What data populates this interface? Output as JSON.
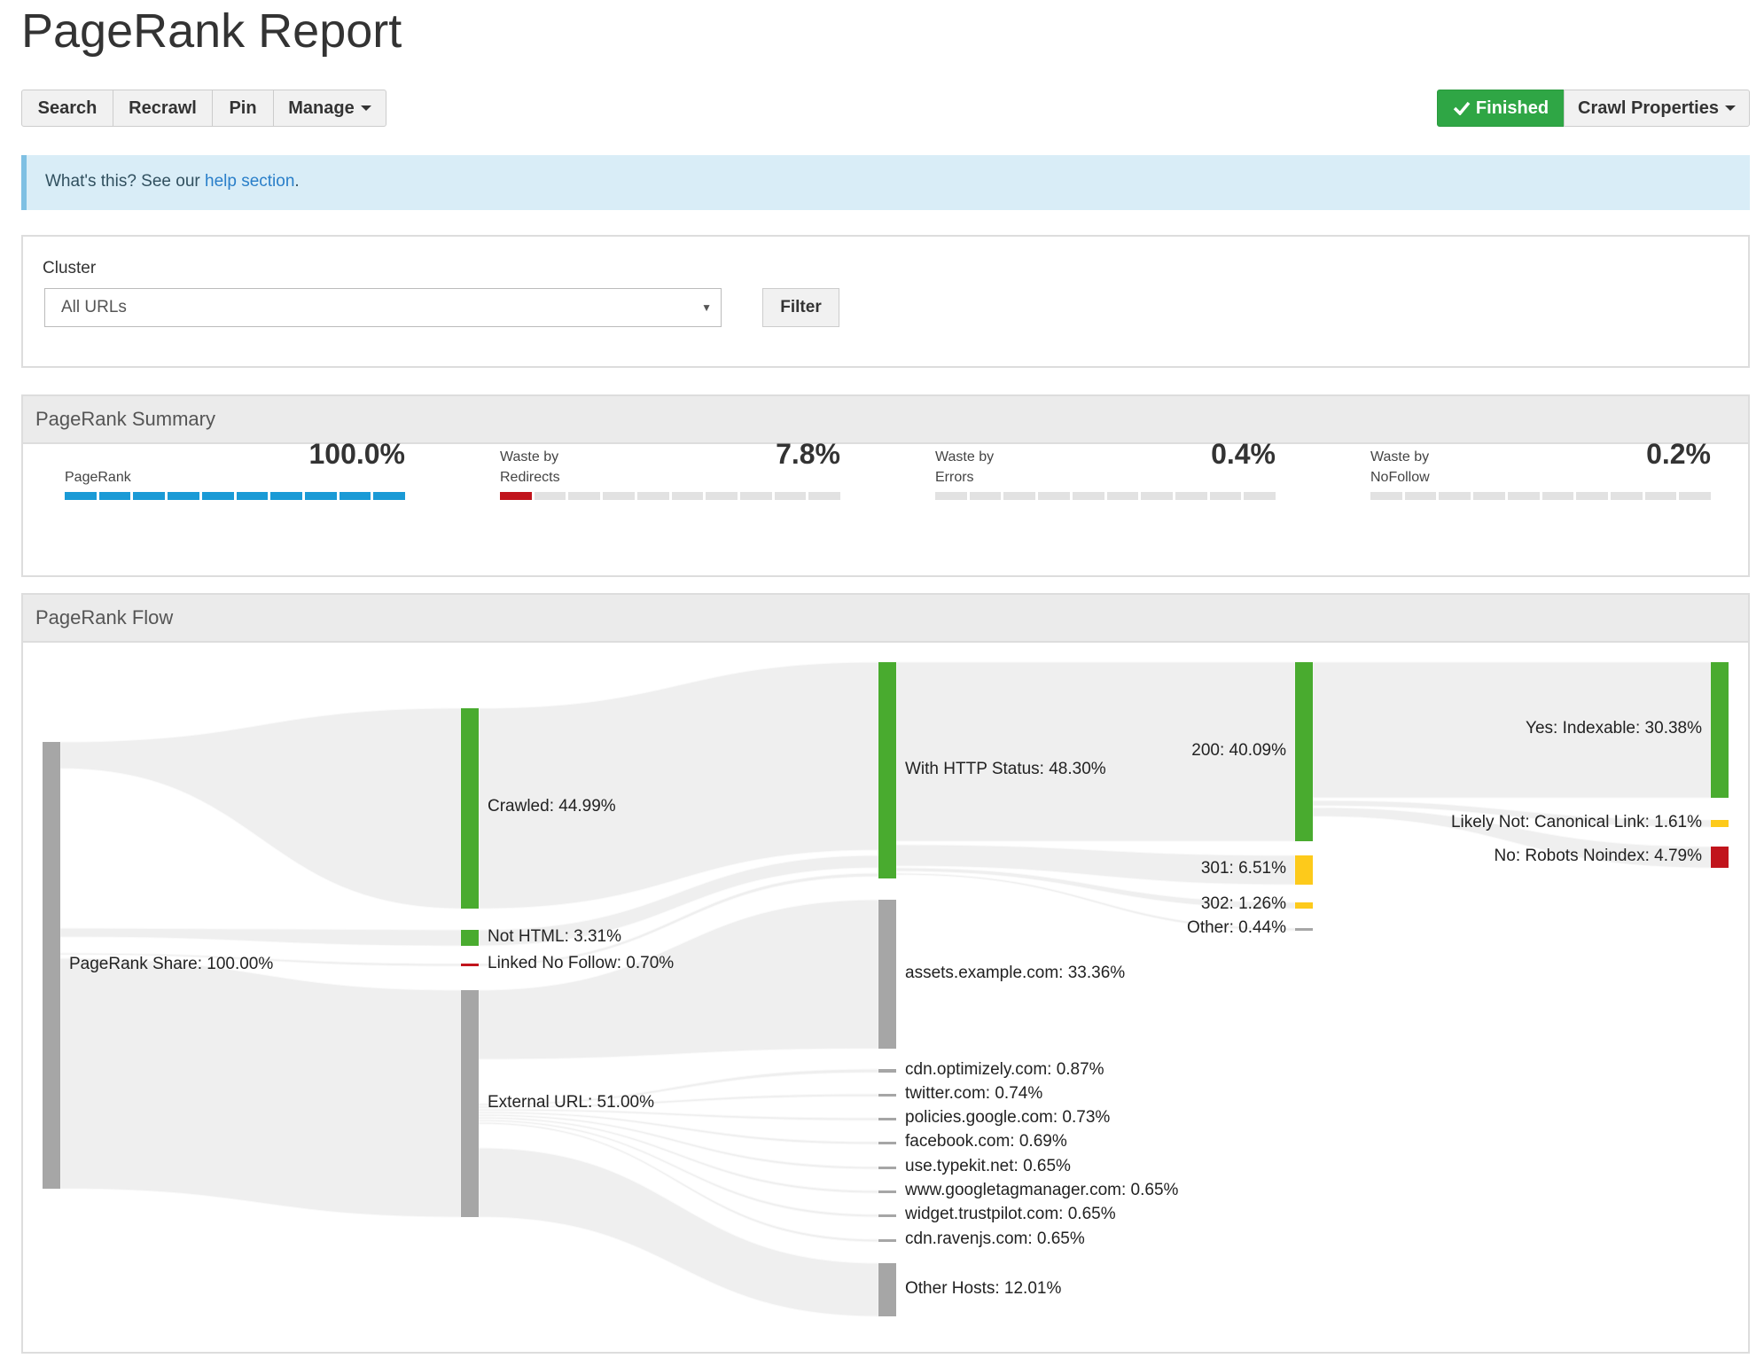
{
  "page": {
    "title": "PageRank Report"
  },
  "toolbar": {
    "search": "Search",
    "recrawl": "Recrawl",
    "pin": "Pin",
    "manage": "Manage",
    "status": "Finished",
    "crawl_properties": "Crawl Properties"
  },
  "info": {
    "text": "What's this? See our ",
    "link": "help section",
    "suffix": "."
  },
  "filter": {
    "label": "Cluster",
    "selected": "All URLs",
    "button": "Filter"
  },
  "summary": {
    "heading": "PageRank Summary",
    "metrics": [
      {
        "label": "PageRank",
        "value": "100.0%",
        "fraction": 1.0,
        "color": "#1a9ad6"
      },
      {
        "label": "Waste by\nRedirects",
        "value": "7.8%",
        "fraction": 0.078,
        "color": "#c1141c"
      },
      {
        "label": "Waste by\nErrors",
        "value": "0.4%",
        "fraction": 0.004,
        "color": "#c1141c"
      },
      {
        "label": "Waste by\nNoFollow",
        "value": "0.2%",
        "fraction": 0.002,
        "color": "#c1141c"
      }
    ]
  },
  "flow": {
    "heading": "PageRank Flow",
    "colors": {
      "green": "#49ab2f",
      "gray": "#a6a6a6",
      "red": "#c1141c",
      "yellow": "#fdca1b",
      "link": "#efefef"
    },
    "nodes": [
      {
        "id": "share",
        "label": "PageRank Share: 100.00%",
        "color": "gray",
        "col": 0
      },
      {
        "id": "crawled",
        "label": "Crawled: 44.99%",
        "color": "green",
        "col": 1
      },
      {
        "id": "nothtml",
        "label": "Not HTML: 3.31%",
        "color": "green",
        "col": 1
      },
      {
        "id": "nofollow",
        "label": "Linked No Follow: 0.70%",
        "color": "red",
        "col": 1
      },
      {
        "id": "external",
        "label": "External URL: 51.00%",
        "color": "gray",
        "col": 1
      },
      {
        "id": "http",
        "label": "With HTTP Status: 48.30%",
        "color": "green",
        "col": 2
      },
      {
        "id": "assets",
        "label": "assets.example.com: 33.36%",
        "color": "gray",
        "col": 2
      },
      {
        "id": "optimizely",
        "label": "cdn.optimizely.com: 0.87%",
        "color": "gray",
        "col": 2
      },
      {
        "id": "twitter",
        "label": "twitter.com: 0.74%",
        "color": "gray",
        "col": 2
      },
      {
        "id": "policies",
        "label": "policies.google.com: 0.73%",
        "color": "gray",
        "col": 2
      },
      {
        "id": "facebook",
        "label": "facebook.com: 0.69%",
        "color": "gray",
        "col": 2
      },
      {
        "id": "typekit",
        "label": "use.typekit.net: 0.65%",
        "color": "gray",
        "col": 2
      },
      {
        "id": "gtm",
        "label": "www.googletagmanager.com: 0.65%",
        "color": "gray",
        "col": 2
      },
      {
        "id": "trustpilot",
        "label": "widget.trustpilot.com: 0.65%",
        "color": "gray",
        "col": 2
      },
      {
        "id": "ravenjs",
        "label": "cdn.ravenjs.com: 0.65%",
        "color": "gray",
        "col": 2
      },
      {
        "id": "otherhosts",
        "label": "Other Hosts: 12.01%",
        "color": "gray",
        "col": 2
      },
      {
        "id": "s200",
        "label": "200: 40.09%",
        "color": "green",
        "col": 3
      },
      {
        "id": "s301",
        "label": "301: 6.51%",
        "color": "yellow",
        "col": 3
      },
      {
        "id": "s302",
        "label": "302: 1.26%",
        "color": "yellow",
        "col": 3
      },
      {
        "id": "sother",
        "label": "Other: 0.44%",
        "color": "gray",
        "col": 3
      },
      {
        "id": "indexable",
        "label": "Yes: Indexable: 30.38%",
        "color": "green",
        "col": 4
      },
      {
        "id": "canonical",
        "label": "Likely Not: Canonical Link: 1.61%",
        "color": "yellow",
        "col": 4
      },
      {
        "id": "noindex",
        "label": "No: Robots Noindex: 4.79%",
        "color": "red",
        "col": 4
      }
    ],
    "links": [
      {
        "from": "share",
        "to": "crawled"
      },
      {
        "from": "share",
        "to": "nothtml"
      },
      {
        "from": "share",
        "to": "nofollow"
      },
      {
        "from": "share",
        "to": "external"
      },
      {
        "from": "crawled",
        "to": "http"
      },
      {
        "from": "nothtml",
        "to": "http"
      },
      {
        "from": "nofollow",
        "to": "http"
      },
      {
        "from": "external",
        "to": "assets"
      },
      {
        "from": "external",
        "to": "optimizely"
      },
      {
        "from": "external",
        "to": "twitter"
      },
      {
        "from": "external",
        "to": "policies"
      },
      {
        "from": "external",
        "to": "facebook"
      },
      {
        "from": "external",
        "to": "typekit"
      },
      {
        "from": "external",
        "to": "gtm"
      },
      {
        "from": "external",
        "to": "trustpilot"
      },
      {
        "from": "external",
        "to": "ravenjs"
      },
      {
        "from": "external",
        "to": "otherhosts"
      },
      {
        "from": "http",
        "to": "s200"
      },
      {
        "from": "http",
        "to": "s301"
      },
      {
        "from": "http",
        "to": "s302"
      },
      {
        "from": "http",
        "to": "sother"
      },
      {
        "from": "s200",
        "to": "indexable"
      },
      {
        "from": "s200",
        "to": "canonical"
      },
      {
        "from": "s200",
        "to": "noindex"
      }
    ]
  }
}
